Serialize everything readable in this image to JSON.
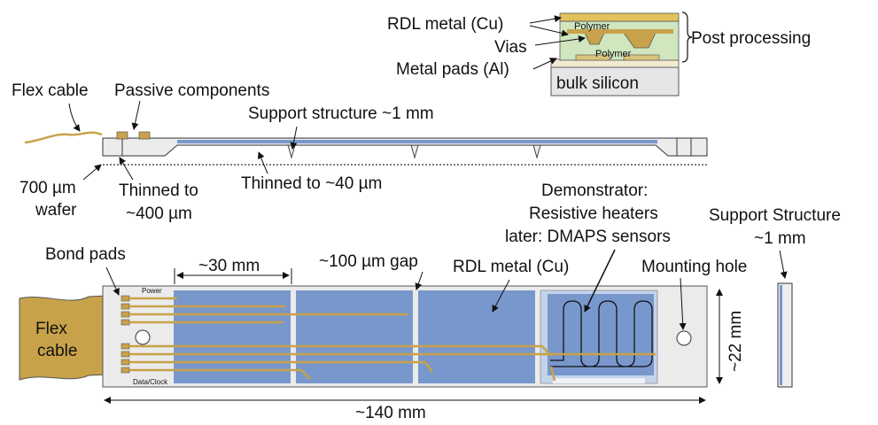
{
  "cross_section": {
    "rdl_metal": "RDL metal (Cu)",
    "vias": "Vias",
    "metal_pads": "Metal pads (Al)",
    "polymer_top": "Polymer",
    "polymer_bottom": "Polymer",
    "bulk": "bulk silicon",
    "post_processing": "Post processing"
  },
  "side_view": {
    "flex_cable": "Flex cable",
    "passive_components": "Passive components",
    "support_structure": "Support structure ~1 mm",
    "wafer_line1": "700 µm",
    "wafer_line2": "wafer",
    "thinned400_line1": "Thinned to",
    "thinned400_line2": "~400 µm",
    "thinned40": "Thinned to ~40 µm"
  },
  "top_view": {
    "bond_pads": "Bond pads",
    "width_30mm": "~30 mm",
    "gap": "~100 µm gap",
    "rdl_metal": "RDL metal (Cu)",
    "demonstrator_line1": "Demonstrator:",
    "demonstrator_line2": "Resistive heaters",
    "demonstrator_line3": "later: DMAPS sensors",
    "mounting_hole": "Mounting hole",
    "support_line1": "Support Structure",
    "support_line2": "~1 mm",
    "flex_line1": "Flex",
    "flex_line2": "cable",
    "power": "Power",
    "data_clock": "Data/Clock",
    "height_22mm": "~22 mm",
    "length_140mm": "~140 mm"
  },
  "colors": {
    "gold": "#c8a24a",
    "blue": "#7897cc",
    "light_blue": "#c3d3ea",
    "polymer_green": "#cfe6bf",
    "silicon_grey": "#e6e6e6",
    "text": "#111111"
  }
}
